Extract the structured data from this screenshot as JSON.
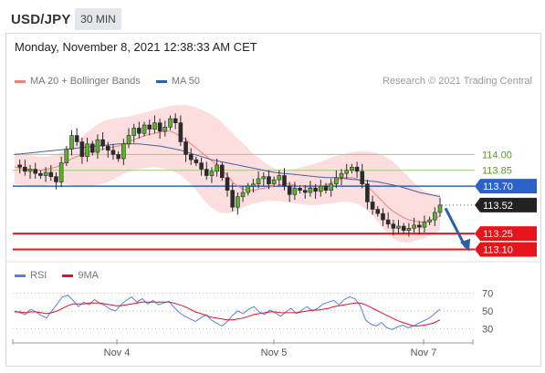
{
  "header": {
    "symbol": "USD/JPY",
    "timeframe": "30 MIN"
  },
  "subheader": {
    "datetime": "Monday, November 8, 2021 12:38:33 AM CET"
  },
  "legend": {
    "items": [
      {
        "label": "MA 20 + Bollinger Bands",
        "color": "#f08080"
      },
      {
        "label": "MA 50",
        "color": "#2e5fa8"
      }
    ],
    "credit": "Research © 2021 Trading Central"
  },
  "rsi_legend": {
    "items": [
      {
        "label": "RSI",
        "color": "#5b7fd6"
      },
      {
        "label": "9MA",
        "color": "#e0112b"
      }
    ]
  },
  "chart_data": {
    "type": "candlestick",
    "title": "USD/JPY",
    "timeframe": "30 MIN",
    "xticks": [
      "Nov 4",
      "Nov 5",
      "Nov 7"
    ],
    "ylim": [
      113.0,
      114.6
    ],
    "levels": [
      {
        "value": 114.0,
        "label": "114.00",
        "style": "resistance-green"
      },
      {
        "value": 113.85,
        "label": "113.85",
        "style": "resistance-green"
      },
      {
        "value": 113.7,
        "label": "113.70",
        "style": "pivot-blue"
      },
      {
        "value": 113.52,
        "label": "113.52",
        "style": "last-price"
      },
      {
        "value": 113.25,
        "label": "113.25",
        "style": "support-red"
      },
      {
        "value": 113.1,
        "label": "113.10",
        "style": "support-red"
      }
    ],
    "close": [
      113.9,
      113.88,
      113.84,
      113.86,
      113.82,
      113.8,
      113.83,
      113.79,
      113.74,
      113.92,
      114.05,
      114.18,
      114.12,
      113.98,
      114.1,
      114.02,
      114.14,
      114.08,
      114.04,
      114.0,
      113.96,
      114.1,
      114.18,
      114.25,
      114.2,
      114.28,
      114.24,
      114.3,
      114.22,
      114.26,
      114.34,
      114.3,
      114.12,
      114.0,
      113.95,
      113.92,
      113.86,
      113.8,
      113.84,
      113.9,
      113.78,
      113.66,
      113.5,
      113.6,
      113.64,
      113.7,
      113.72,
      113.77,
      113.79,
      113.72,
      113.76,
      113.8,
      113.7,
      113.62,
      113.68,
      113.66,
      113.64,
      113.68,
      113.65,
      113.7,
      113.66,
      113.72,
      113.78,
      113.82,
      113.85,
      113.88,
      113.84,
      113.72,
      113.55,
      113.48,
      113.44,
      113.38,
      113.34,
      113.3,
      113.32,
      113.28,
      113.3,
      113.33,
      113.31,
      113.36,
      113.38,
      113.45,
      113.52
    ],
    "ma20": [
      113.88,
      113.87,
      113.86,
      113.86,
      113.85,
      113.85,
      113.86,
      113.87,
      113.88,
      113.9,
      113.93,
      113.96,
      113.98,
      114.0,
      114.02,
      114.03,
      114.04,
      114.05,
      114.06,
      114.07,
      114.08,
      114.1,
      114.12,
      114.14,
      114.16,
      114.18,
      114.19,
      114.2,
      114.21,
      114.22,
      114.22,
      114.2,
      114.17,
      114.14,
      114.1,
      114.06,
      114.02,
      113.98,
      113.94,
      113.9,
      113.85,
      113.8,
      113.74,
      113.7,
      113.67,
      113.66,
      113.66,
      113.67,
      113.68,
      113.69,
      113.7,
      113.71,
      113.72,
      113.72,
      113.71,
      113.7,
      113.69,
      113.69,
      113.69,
      113.7,
      113.71,
      113.73,
      113.75,
      113.77,
      113.78,
      113.78,
      113.77,
      113.74,
      113.7,
      113.65,
      113.6,
      113.55,
      113.5,
      113.46,
      113.43,
      113.4,
      113.38,
      113.37,
      113.36,
      113.36,
      113.37,
      113.39,
      113.42
    ],
    "ma50": [
      114.0,
      114.01,
      114.02,
      114.03,
      114.04,
      114.05,
      114.06,
      114.07,
      114.08,
      114.09,
      114.1,
      114.1,
      114.1,
      114.09,
      114.08,
      114.06,
      114.04,
      114.01,
      113.98,
      113.95,
      113.93,
      113.91,
      113.89,
      113.87,
      113.85,
      113.83,
      113.82,
      113.81,
      113.8,
      113.79,
      113.78,
      113.78,
      113.77,
      113.76,
      113.75,
      113.74,
      113.72,
      113.7,
      113.67,
      113.64,
      113.62,
      113.6
    ],
    "upper_band": [
      114.02,
      114.0,
      113.99,
      113.98,
      113.98,
      114.0,
      114.03,
      114.08,
      114.15,
      114.22,
      114.28,
      114.32,
      114.34,
      114.35,
      114.36,
      114.38,
      114.4,
      114.42,
      114.44,
      114.46,
      114.47,
      114.47,
      114.45,
      114.42,
      114.38,
      114.33,
      114.25,
      114.17,
      114.1,
      114.02,
      113.96,
      113.9,
      113.86,
      113.85,
      113.86,
      113.88,
      113.9,
      113.92,
      113.95,
      113.98,
      114.0,
      114.02,
      114.03,
      114.03,
      114.02,
      113.99,
      113.95,
      113.88,
      113.8,
      113.72,
      113.66,
      113.63,
      113.62
    ],
    "lower_band": [
      113.72,
      113.71,
      113.7,
      113.7,
      113.71,
      113.72,
      113.72,
      113.71,
      113.7,
      113.7,
      113.71,
      113.73,
      113.76,
      113.8,
      113.84,
      113.86,
      113.87,
      113.88,
      113.87,
      113.85,
      113.82,
      113.76,
      113.68,
      113.58,
      113.5,
      113.45,
      113.44,
      113.46,
      113.5,
      113.53,
      113.55,
      113.56,
      113.56,
      113.55,
      113.54,
      113.53,
      113.52,
      113.52,
      113.53,
      113.54,
      113.55,
      113.55,
      113.53,
      113.48,
      113.4,
      113.3,
      113.22,
      113.17,
      113.16,
      113.18,
      113.2,
      113.24,
      113.28
    ],
    "rsi": {
      "ylim": [
        20,
        80
      ],
      "levels": [
        70,
        50,
        30
      ],
      "rsi": [
        50,
        48,
        46,
        52,
        49,
        45,
        42,
        50,
        58,
        66,
        68,
        62,
        55,
        60,
        57,
        63,
        59,
        56,
        52,
        50,
        57,
        62,
        66,
        60,
        64,
        58,
        62,
        57,
        59,
        61,
        54,
        48,
        44,
        41,
        38,
        42,
        46,
        40,
        36,
        33,
        38,
        45,
        50,
        47,
        52,
        55,
        49,
        46,
        51,
        48,
        44,
        49,
        53,
        47,
        51,
        55,
        50,
        53,
        58,
        60,
        62,
        57,
        63,
        66,
        64,
        56,
        40,
        35,
        33,
        37,
        31,
        29,
        32,
        34,
        31,
        33,
        36,
        39,
        42,
        47,
        52
      ],
      "ma9": [
        49,
        49,
        48,
        49,
        49,
        48,
        47,
        48,
        50,
        53,
        56,
        58,
        58,
        58,
        59,
        59,
        59,
        58,
        57,
        56,
        56,
        57,
        58,
        59,
        60,
        60,
        60,
        60,
        60,
        60,
        59,
        57,
        55,
        52,
        49,
        47,
        45,
        43,
        42,
        41,
        40,
        40,
        41,
        42,
        44,
        46,
        47,
        48,
        49,
        49,
        48,
        48,
        48,
        48,
        49,
        50,
        51,
        51,
        52,
        53,
        55,
        56,
        57,
        58,
        59,
        59,
        57,
        54,
        51,
        48,
        45,
        42,
        39,
        37,
        35,
        33,
        33,
        34,
        35,
        37,
        40
      ]
    }
  }
}
